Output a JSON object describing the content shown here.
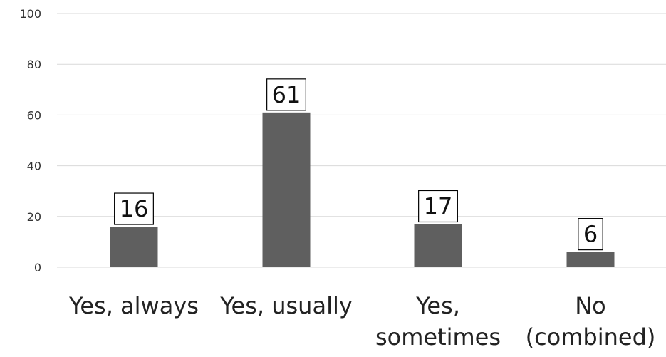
{
  "chart_data": {
    "type": "bar",
    "categories": [
      [
        "Yes, always"
      ],
      [
        "Yes, usually"
      ],
      [
        "Yes,",
        "sometimes"
      ],
      [
        "No",
        "(combined)"
      ]
    ],
    "values": [
      16,
      61,
      17,
      6
    ],
    "data_labels": [
      "16",
      "61",
      "17",
      "6"
    ],
    "yticks": [
      "0",
      "20",
      "40",
      "60",
      "80",
      "100"
    ],
    "ylim": [
      0,
      100
    ],
    "grid": true,
    "bar_color": "#5f5f5f",
    "label_box_color": "#000000",
    "title": "",
    "xlabel": "",
    "ylabel": ""
  }
}
